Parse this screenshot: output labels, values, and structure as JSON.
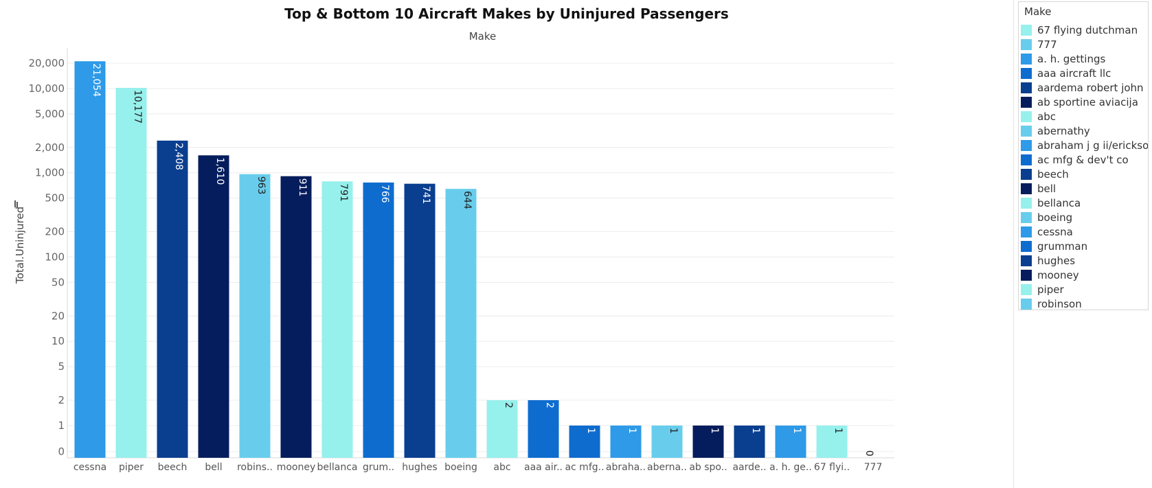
{
  "chart_data": {
    "type": "bar",
    "title": "Top & Bottom 10 Aircraft Makes by Uninjured Passengers",
    "subtitle": "Make",
    "xlabel": "",
    "ylabel": "Total.Uninjured",
    "y_scale": "symlog",
    "ylim": [
      0,
      27000
    ],
    "y_ticks": [
      0,
      1,
      2,
      5,
      10,
      20,
      50,
      100,
      200,
      500,
      1000,
      2000,
      5000,
      10000,
      20000
    ],
    "y_tick_labels": [
      "0",
      "1",
      "2",
      "5",
      "10",
      "20",
      "50",
      "100",
      "200",
      "500",
      "1,000",
      "2,000",
      "5,000",
      "10,000",
      "20,000"
    ],
    "grid": "horizontal",
    "legend_position": "right",
    "categories": [
      "cessna",
      "piper",
      "beech",
      "bell",
      "robinson",
      "mooney",
      "bellanca",
      "grumman",
      "hughes",
      "boeing",
      "abc",
      "aaa aircraft llc",
      "ac mfg & dev't co",
      "abraham j g ii/erickson",
      "abernathy",
      "ab sportine aviacija",
      "aardema robert john",
      "a. h. gettings",
      "67 flying dutchman",
      "777"
    ],
    "tick_labels": [
      "cessna",
      "piper",
      "beech",
      "bell",
      "robins..",
      "mooney",
      "bellanca",
      "grum..",
      "hughes",
      "boeing",
      "abc",
      "aaa air..",
      "ac mfg..",
      "abraha..",
      "aberna..",
      "ab spo..",
      "aarde..",
      "a. h. ge..",
      "67 flyi..",
      "777"
    ],
    "values": [
      21054,
      10177,
      2408,
      1610,
      963,
      911,
      791,
      766,
      741,
      644,
      2,
      2,
      1,
      1,
      1,
      1,
      1,
      1,
      1,
      0
    ],
    "value_labels": [
      "21,054",
      "10,177",
      "2,408",
      "1,610",
      "963",
      "911",
      "791",
      "766",
      "741",
      "644",
      "2",
      "2",
      "1",
      "1",
      "1",
      "1",
      "1",
      "1",
      "1",
      "0"
    ],
    "bar_colors": [
      "#2e9ae8",
      "#96f0ec",
      "#0a3e8f",
      "#051d5c",
      "#68cdec",
      "#051d5c",
      "#96f0ec",
      "#0e6ccf",
      "#0a3e8f",
      "#68cdec",
      "#96f0ec",
      "#0e6ccf",
      "#0e6ccf",
      "#2e9ae8",
      "#68cdec",
      "#051d5c",
      "#0a3e8f",
      "#2e9ae8",
      "#96f0ec",
      "#68cdec"
    ],
    "value_label_colors": [
      "#ffffff",
      "#222222",
      "#ffffff",
      "#ffffff",
      "#222222",
      "#ffffff",
      "#222222",
      "#ffffff",
      "#ffffff",
      "#222222",
      "#222222",
      "#ffffff",
      "#ffffff",
      "#ffffff",
      "#222222",
      "#ffffff",
      "#ffffff",
      "#ffffff",
      "#222222",
      "#222222"
    ]
  },
  "legend": {
    "title": "Make",
    "items": [
      {
        "label": "67 flying dutchman",
        "color": "#96f0ec"
      },
      {
        "label": "777",
        "color": "#68cdec"
      },
      {
        "label": "a. h. gettings",
        "color": "#2e9ae8"
      },
      {
        "label": "aaa aircraft llc",
        "color": "#0e6ccf"
      },
      {
        "label": "aardema robert john",
        "color": "#0a3e8f"
      },
      {
        "label": "ab sportine aviacija",
        "color": "#051d5c"
      },
      {
        "label": "abc",
        "color": "#96f0ec"
      },
      {
        "label": "abernathy",
        "color": "#68cdec"
      },
      {
        "label": "abraham j g ii/erickso..",
        "color": "#2e9ae8"
      },
      {
        "label": "ac mfg & dev't co",
        "color": "#0e6ccf"
      },
      {
        "label": "beech",
        "color": "#0a3e8f"
      },
      {
        "label": "bell",
        "color": "#051d5c"
      },
      {
        "label": "bellanca",
        "color": "#96f0ec"
      },
      {
        "label": "boeing",
        "color": "#68cdec"
      },
      {
        "label": "cessna",
        "color": "#2e9ae8"
      },
      {
        "label": "grumman",
        "color": "#0e6ccf"
      },
      {
        "label": "hughes",
        "color": "#0a3e8f"
      },
      {
        "label": "mooney",
        "color": "#051d5c"
      },
      {
        "label": "piper",
        "color": "#96f0ec"
      },
      {
        "label": "robinson",
        "color": "#68cdec"
      }
    ]
  }
}
